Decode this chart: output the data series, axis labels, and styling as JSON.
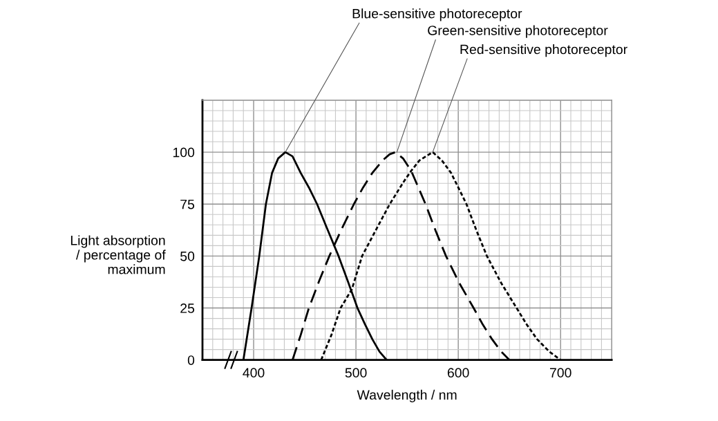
{
  "chart_data": {
    "type": "line",
    "xlabel": "Wavelength / nm",
    "ylabel": "Light absorption\n/ percentage of\nmaximum",
    "xlim": [
      350,
      750
    ],
    "xticks": [
      400,
      500,
      600,
      700
    ],
    "ylim": [
      0,
      125
    ],
    "yticks": [
      0,
      25,
      50,
      75,
      100
    ],
    "grid": true,
    "marker": "none",
    "series": [
      {
        "color": "#000000",
        "line_style": "solid",
        "x": [
          390,
          398,
          405.5,
          412,
          418,
          424,
          431,
          438,
          446,
          454,
          462,
          472,
          483,
          492,
          501.5,
          509,
          516,
          523,
          530
        ],
        "values": [
          0,
          25,
          50,
          75,
          90,
          97,
          100,
          98,
          90,
          83,
          75,
          63,
          50,
          38,
          25,
          17,
          10,
          4,
          0
        ]
      },
      {
        "color": "#000000",
        "line_style": "dashed",
        "x": [
          438,
          446,
          454,
          464,
          474,
          486,
          498,
          507,
          516,
          526,
          533,
          538.6,
          546,
          554,
          561,
          568,
          578,
          588,
          601,
          615,
          624,
          633,
          642,
          650
        ],
        "values": [
          0,
          12,
          25,
          38,
          50,
          63,
          75,
          83,
          90,
          96,
          99,
          100,
          97,
          91,
          83,
          75,
          62,
          50,
          37,
          25,
          17,
          10,
          4,
          0
        ]
      },
      {
        "color": "#000000",
        "line_style": "dotted",
        "x": [
          466,
          476,
          485,
          496,
          506,
          520,
          533,
          547,
          554,
          562,
          575,
          584,
          593,
          600,
          608,
          618,
          628,
          642,
          657,
          667,
          677,
          689,
          700
        ],
        "values": [
          0,
          12,
          25,
          34,
          50,
          63,
          75,
          86,
          91,
          96,
          100,
          96,
          90,
          83,
          75,
          62,
          50,
          37,
          25,
          17,
          10,
          4,
          0
        ]
      }
    ],
    "annotations": [
      {
        "text": "Blue-sensitive photoreceptor",
        "x": 431,
        "y": 100
      },
      {
        "text": "Green-sensitive photoreceptor",
        "x": 540,
        "y": 100
      },
      {
        "text": "Red-sensitive photoreceptor",
        "x": 575,
        "y": 100
      }
    ]
  }
}
